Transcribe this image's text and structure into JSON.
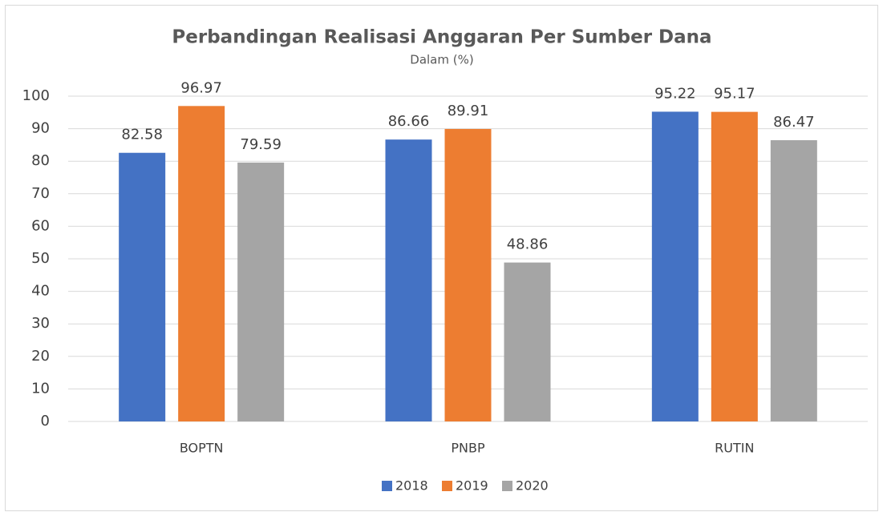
{
  "chart_data": {
    "type": "bar",
    "title": "Perbandingan Realisasi Anggaran Per Sumber Dana",
    "subtitle": "Dalam (%)",
    "categories": [
      "BOPTN",
      "PNBP",
      "RUTIN"
    ],
    "series": [
      {
        "name": "2018",
        "color": "#4472c4",
        "values": [
          82.58,
          86.66,
          95.22
        ]
      },
      {
        "name": "2019",
        "color": "#ed7d31",
        "values": [
          96.97,
          89.91,
          95.17
        ]
      },
      {
        "name": "2020",
        "color": "#a5a5a5",
        "values": [
          79.59,
          48.86,
          86.47
        ]
      }
    ],
    "ylim": [
      0,
      100
    ],
    "yticks": [
      0,
      10,
      20,
      30,
      40,
      50,
      60,
      70,
      80,
      90,
      100
    ],
    "grid": true,
    "legend": "bottom"
  }
}
